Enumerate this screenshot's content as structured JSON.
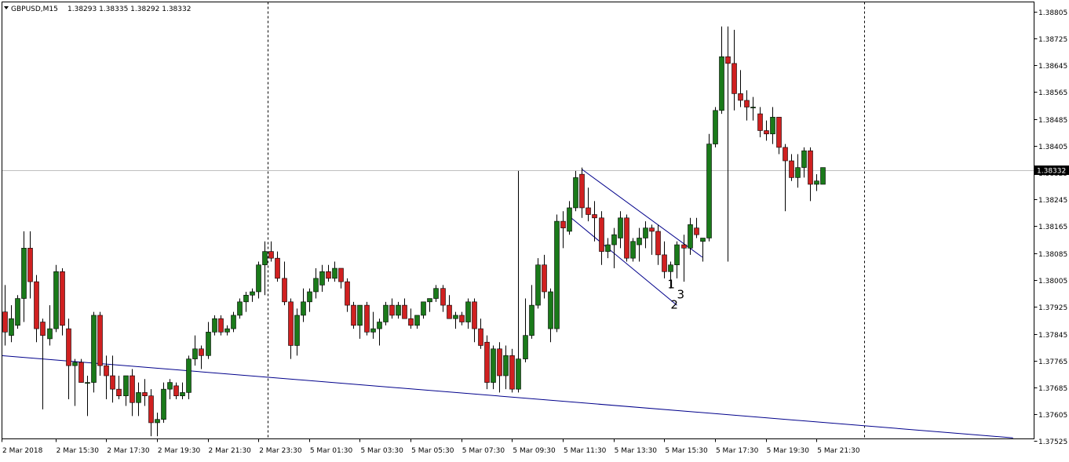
{
  "header": {
    "symbol_timeframe": "GBPUSD,M15",
    "ohlc": "1.38293 1.38335 1.38292 1.38332"
  },
  "colors": {
    "background": "#ffffff",
    "frame": "#000000",
    "bull_candle": "#1a7a1a",
    "bear_candle": "#d02020",
    "wick": "#000000",
    "trendline": "#00008b",
    "bid_line": "#c0c0c0",
    "price_tag_bg": "#000000",
    "price_tag_text": "#ffffff"
  },
  "chart_data": {
    "type": "candlestick",
    "symbol": "GBPUSD",
    "timeframe": "M15",
    "grid": false,
    "ylim": [
      1.37485,
      1.38845
    ],
    "y_ticks": [
      "1.38805",
      "1.38725",
      "1.38645",
      "1.38565",
      "1.38485",
      "1.38405",
      "1.38325",
      "1.38245",
      "1.38165",
      "1.38085",
      "1.38005",
      "1.37925",
      "1.37845",
      "1.37765",
      "1.37685",
      "1.37605",
      "1.37525"
    ],
    "x_ticks": [
      "2 Mar 2018",
      "2 Mar 15:30",
      "2 Mar 17:30",
      "2 Mar 19:30",
      "2 Mar 21:30",
      "2 Mar 23:30",
      "5 Mar 01:30",
      "5 Mar 03:30",
      "5 Mar 05:30",
      "5 Mar 07:30",
      "5 Mar 09:30",
      "5 Mar 11:30",
      "5 Mar 13:30",
      "5 Mar 15:30",
      "5 Mar 17:30",
      "5 Mar 19:30",
      "5 Mar 21:30"
    ],
    "current_price": "1.38332",
    "period_separators": [
      41.5,
      135.5
    ],
    "ohlc": [
      [
        1.3791,
        1.3799,
        1.3781,
        1.3785
      ],
      [
        1.3784,
        1.3793,
        1.3782,
        1.3789
      ],
      [
        1.3787,
        1.3796,
        1.3786,
        1.3795
      ],
      [
        1.3795,
        1.3815,
        1.3788,
        1.381
      ],
      [
        1.381,
        1.3815,
        1.3795,
        1.38
      ],
      [
        1.38,
        1.3802,
        1.3782,
        1.3786
      ],
      [
        1.3788,
        1.3789,
        1.3762,
        1.3784
      ],
      [
        1.3783,
        1.3793,
        1.3781,
        1.3786
      ],
      [
        1.3786,
        1.3805,
        1.3785,
        1.3803
      ],
      [
        1.3803,
        1.3804,
        1.3784,
        1.3787
      ],
      [
        1.3786,
        1.3789,
        1.3765,
        1.3775
      ],
      [
        1.3775,
        1.3777,
        1.3763,
        1.3776
      ],
      [
        1.3776,
        1.3777,
        1.377,
        1.377
      ],
      [
        1.377,
        1.3772,
        1.376,
        1.377
      ],
      [
        1.377,
        1.3791,
        1.3767,
        1.379
      ],
      [
        1.379,
        1.3791,
        1.3772,
        1.3775
      ],
      [
        1.3775,
        1.3778,
        1.3765,
        1.3772
      ],
      [
        1.3772,
        1.3778,
        1.3764,
        1.3768
      ],
      [
        1.3768,
        1.3772,
        1.3765,
        1.3766
      ],
      [
        1.3766,
        1.3772,
        1.3763,
        1.3772
      ],
      [
        1.3772,
        1.3774,
        1.376,
        1.3764
      ],
      [
        1.3764,
        1.377,
        1.376,
        1.3767
      ],
      [
        1.3767,
        1.3771,
        1.3763,
        1.3766
      ],
      [
        1.3766,
        1.3768,
        1.3754,
        1.3758
      ],
      [
        1.3758,
        1.3761,
        1.3754,
        1.3759
      ],
      [
        1.3759,
        1.377,
        1.3758,
        1.3768
      ],
      [
        1.3768,
        1.3771,
        1.3765,
        1.377
      ],
      [
        1.3769,
        1.377,
        1.3765,
        1.3766
      ],
      [
        1.3766,
        1.377,
        1.3765,
        1.3767
      ],
      [
        1.3767,
        1.3778,
        1.3765,
        1.3777
      ],
      [
        1.3777,
        1.3784,
        1.3775,
        1.378
      ],
      [
        1.378,
        1.3781,
        1.3774,
        1.3778
      ],
      [
        1.3778,
        1.3788,
        1.3777,
        1.3785
      ],
      [
        1.3785,
        1.379,
        1.3784,
        1.3789
      ],
      [
        1.3789,
        1.379,
        1.3784,
        1.3785
      ],
      [
        1.3785,
        1.3787,
        1.3784,
        1.3786
      ],
      [
        1.3786,
        1.3791,
        1.3785,
        1.379
      ],
      [
        1.379,
        1.3795,
        1.3789,
        1.3794
      ],
      [
        1.3794,
        1.3797,
        1.3791,
        1.3796
      ],
      [
        1.3796,
        1.3798,
        1.3794,
        1.3797
      ],
      [
        1.3797,
        1.3806,
        1.3795,
        1.3805
      ],
      [
        1.3805,
        1.3812,
        1.3796,
        1.3809
      ],
      [
        1.3809,
        1.3812,
        1.3806,
        1.3807
      ],
      [
        1.3807,
        1.3809,
        1.38,
        1.3801
      ],
      [
        1.3801,
        1.3806,
        1.3793,
        1.3794
      ],
      [
        1.3794,
        1.3795,
        1.3777,
        1.3781
      ],
      [
        1.3781,
        1.3792,
        1.3778,
        1.379
      ],
      [
        1.379,
        1.3798,
        1.3788,
        1.3794
      ],
      [
        1.3794,
        1.3798,
        1.3791,
        1.3797
      ],
      [
        1.3797,
        1.3804,
        1.3795,
        1.3801
      ],
      [
        1.3799,
        1.3805,
        1.3797,
        1.3803
      ],
      [
        1.3803,
        1.3805,
        1.38,
        1.3801
      ],
      [
        1.3801,
        1.3806,
        1.38,
        1.3804
      ],
      [
        1.3804,
        1.3804,
        1.3798,
        1.38
      ],
      [
        1.38,
        1.3801,
        1.3791,
        1.3793
      ],
      [
        1.3793,
        1.3794,
        1.3786,
        1.3787
      ],
      [
        1.3787,
        1.3793,
        1.3783,
        1.3793
      ],
      [
        1.3793,
        1.3794,
        1.3784,
        1.3785
      ],
      [
        1.3785,
        1.3791,
        1.3783,
        1.3786
      ],
      [
        1.3786,
        1.3789,
        1.3781,
        1.3788
      ],
      [
        1.3788,
        1.3794,
        1.3787,
        1.3793
      ],
      [
        1.3793,
        1.3795,
        1.3789,
        1.379
      ],
      [
        1.379,
        1.3794,
        1.3789,
        1.3793
      ],
      [
        1.3793,
        1.3795,
        1.3789,
        1.3789
      ],
      [
        1.3789,
        1.3792,
        1.3786,
        1.3787
      ],
      [
        1.3787,
        1.379,
        1.3786,
        1.379
      ],
      [
        1.379,
        1.3794,
        1.3789,
        1.3794
      ],
      [
        1.3794,
        1.3795,
        1.3791,
        1.3795
      ],
      [
        1.3795,
        1.3799,
        1.3794,
        1.3798
      ],
      [
        1.3798,
        1.3799,
        1.3791,
        1.3793
      ],
      [
        1.3793,
        1.3796,
        1.3789,
        1.3789
      ],
      [
        1.3789,
        1.3791,
        1.3786,
        1.379
      ],
      [
        1.379,
        1.3791,
        1.3787,
        1.3788
      ],
      [
        1.3788,
        1.3795,
        1.3786,
        1.3794
      ],
      [
        1.3794,
        1.3795,
        1.3782,
        1.3786
      ],
      [
        1.3786,
        1.3789,
        1.378,
        1.3781
      ],
      [
        1.3782,
        1.3784,
        1.3768,
        1.377
      ],
      [
        1.377,
        1.3781,
        1.3768,
        1.378
      ],
      [
        1.378,
        1.3782,
        1.3767,
        1.3772
      ],
      [
        1.3772,
        1.3781,
        1.3768,
        1.3778
      ],
      [
        1.3778,
        1.378,
        1.3767,
        1.3768
      ],
      [
        1.3768,
        1.3833,
        1.3767,
        1.3777
      ],
      [
        1.3777,
        1.3795,
        1.3776,
        1.3784
      ],
      [
        1.3784,
        1.3799,
        1.3783,
        1.3793
      ],
      [
        1.3793,
        1.3807,
        1.3792,
        1.3805
      ],
      [
        1.3805,
        1.3808,
        1.3795,
        1.3797
      ],
      [
        1.3786,
        1.3798,
        1.3782,
        1.3797
      ],
      [
        1.3786,
        1.382,
        1.3785,
        1.3818
      ],
      [
        1.3818,
        1.3821,
        1.381,
        1.3816
      ],
      [
        1.3815,
        1.3824,
        1.3814,
        1.3822
      ],
      [
        1.3822,
        1.3833,
        1.3821,
        1.3831
      ],
      [
        1.3832,
        1.3834,
        1.3819,
        1.3822
      ],
      [
        1.3822,
        1.3828,
        1.3818,
        1.382
      ],
      [
        1.382,
        1.3824,
        1.3812,
        1.3819
      ],
      [
        1.3819,
        1.3821,
        1.3805,
        1.3809
      ],
      [
        1.3809,
        1.3813,
        1.3807,
        1.3811
      ],
      [
        1.3811,
        1.3816,
        1.3804,
        1.3814
      ],
      [
        1.3813,
        1.3821,
        1.381,
        1.3819
      ],
      [
        1.3819,
        1.382,
        1.3806,
        1.3807
      ],
      [
        1.3807,
        1.3813,
        1.3806,
        1.3812
      ],
      [
        1.3811,
        1.3816,
        1.3806,
        1.3813
      ],
      [
        1.3813,
        1.3818,
        1.381,
        1.3816
      ],
      [
        1.3816,
        1.3817,
        1.3808,
        1.3815
      ],
      [
        1.3815,
        1.3817,
        1.3805,
        1.3808
      ],
      [
        1.3808,
        1.3812,
        1.3801,
        1.3803
      ],
      [
        1.3803,
        1.3806,
        1.3798,
        1.3805
      ],
      [
        1.3805,
        1.3812,
        1.3801,
        1.3811
      ],
      [
        1.3811,
        1.3814,
        1.38,
        1.381
      ],
      [
        1.381,
        1.3819,
        1.3808,
        1.3817
      ],
      [
        1.3816,
        1.3819,
        1.3813,
        1.3814
      ],
      [
        1.3812,
        1.3813,
        1.3806,
        1.3813
      ],
      [
        1.3813,
        1.3844,
        1.3812,
        1.3841
      ],
      [
        1.3841,
        1.3852,
        1.384,
        1.3851
      ],
      [
        1.3851,
        1.3876,
        1.385,
        1.3867
      ],
      [
        1.3867,
        1.3876,
        1.3806,
        1.3865
      ],
      [
        1.3865,
        1.3875,
        1.3851,
        1.3856
      ],
      [
        1.3856,
        1.3863,
        1.3852,
        1.3854
      ],
      [
        1.3854,
        1.3857,
        1.3848,
        1.3852
      ],
      [
        1.3852,
        1.3855,
        1.3848,
        1.3852
      ],
      [
        1.385,
        1.3852,
        1.3843,
        1.3845
      ],
      [
        1.3845,
        1.3848,
        1.3842,
        1.3844
      ],
      [
        1.3844,
        1.3852,
        1.3841,
        1.3849
      ],
      [
        1.3849,
        1.3849,
        1.3838,
        1.384
      ],
      [
        1.384,
        1.3841,
        1.3821,
        1.3836
      ],
      [
        1.3836,
        1.3838,
        1.383,
        1.3831
      ],
      [
        1.3831,
        1.3838,
        1.3828,
        1.3834
      ],
      [
        1.3834,
        1.384,
        1.3831,
        1.3839
      ],
      [
        1.3839,
        1.384,
        1.3824,
        1.3829
      ],
      [
        1.3829,
        1.3832,
        1.3827,
        1.383
      ],
      [
        1.3829,
        1.3834,
        1.3829,
        1.3834
      ]
    ],
    "trendlines": [
      {
        "from": [
          -0.5,
          1.3778
        ],
        "to": [
          159,
          1.37535
        ]
      },
      {
        "from": [
          89,
          1.38195
        ],
        "to": [
          106,
          1.3793
        ]
      },
      {
        "from": [
          91,
          1.38335
        ],
        "to": [
          110,
          1.38073
        ]
      }
    ],
    "annotations": [
      {
        "text": "1",
        "x": 104.5,
        "y": 1.3798
      },
      {
        "text": "2",
        "x": 105,
        "y": 1.3792
      },
      {
        "text": "3",
        "x": 106,
        "y": 1.3795
      }
    ]
  }
}
